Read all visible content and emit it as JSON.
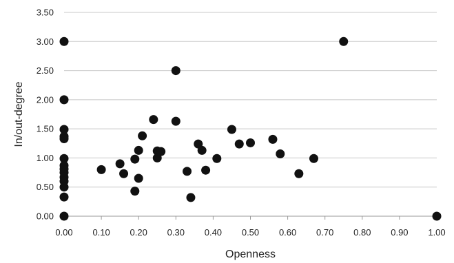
{
  "chart_data": {
    "type": "scatter",
    "xlabel": "Openness",
    "ylabel": "In/out-degree",
    "xlim": [
      0.0,
      1.0
    ],
    "ylim": [
      0.0,
      3.5
    ],
    "xticks": [
      "0.00",
      "0.10",
      "0.20",
      "0.30",
      "0.40",
      "0.50",
      "0.60",
      "0.70",
      "0.80",
      "0.90",
      "1.00"
    ],
    "yticks": [
      "0.00",
      "0.50",
      "1.00",
      "1.50",
      "2.00",
      "2.50",
      "3.00",
      "3.50"
    ],
    "grid": "horizontal",
    "marker_color": "#111111",
    "series": [
      {
        "points": [
          [
            0.0,
            3.0
          ],
          [
            0.0,
            2.0
          ],
          [
            0.0,
            1.49
          ],
          [
            0.0,
            1.37
          ],
          [
            0.0,
            1.33
          ],
          [
            0.0,
            0.99
          ],
          [
            0.0,
            0.87
          ],
          [
            0.0,
            0.81
          ],
          [
            0.0,
            0.75
          ],
          [
            0.0,
            0.67
          ],
          [
            0.0,
            0.6
          ],
          [
            0.0,
            0.5
          ],
          [
            0.0,
            0.33
          ],
          [
            0.0,
            0.0
          ],
          [
            0.1,
            0.8
          ],
          [
            0.15,
            0.9
          ],
          [
            0.16,
            0.73
          ],
          [
            0.19,
            0.98
          ],
          [
            0.19,
            0.43
          ],
          [
            0.2,
            0.65
          ],
          [
            0.2,
            1.13
          ],
          [
            0.21,
            1.38
          ],
          [
            0.24,
            1.66
          ],
          [
            0.25,
            1.0
          ],
          [
            0.25,
            1.12
          ],
          [
            0.26,
            1.11
          ],
          [
            0.3,
            1.63
          ],
          [
            0.3,
            2.5
          ],
          [
            0.33,
            0.77
          ],
          [
            0.34,
            0.32
          ],
          [
            0.36,
            1.24
          ],
          [
            0.37,
            1.13
          ],
          [
            0.38,
            0.79
          ],
          [
            0.41,
            0.99
          ],
          [
            0.45,
            1.49
          ],
          [
            0.47,
            1.24
          ],
          [
            0.5,
            1.26
          ],
          [
            0.56,
            1.32
          ],
          [
            0.58,
            1.07
          ],
          [
            0.63,
            0.73
          ],
          [
            0.67,
            0.99
          ],
          [
            0.75,
            3.0
          ],
          [
            1.0,
            0.0
          ]
        ]
      }
    ]
  }
}
